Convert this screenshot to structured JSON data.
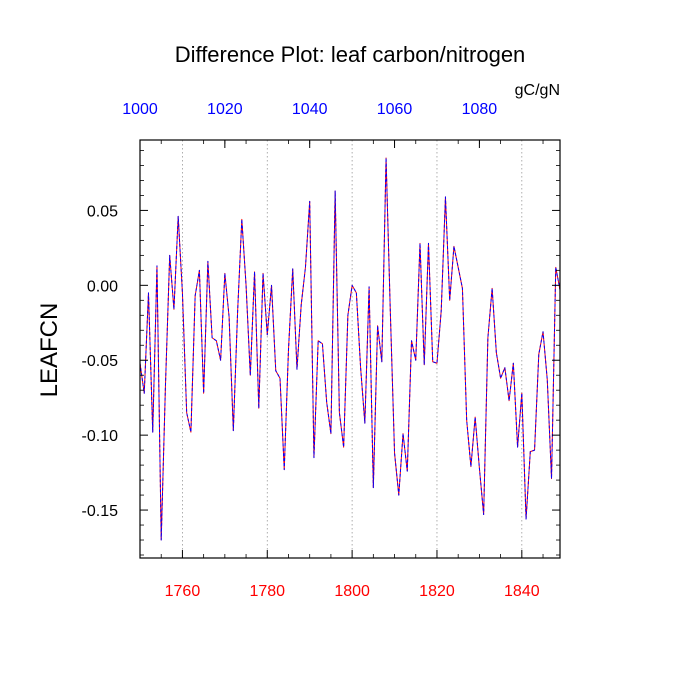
{
  "chart_data": {
    "type": "line",
    "title": "Difference Plot: leaf carbon/nitrogen",
    "units": "gC/gN",
    "ylabel": "LEAFCN",
    "xlabel": "",
    "bottom_axis": {
      "xlim": [
        1750,
        1849
      ],
      "ticks": [
        1760,
        1780,
        1800,
        1820,
        1840
      ],
      "tick_labels": [
        "1760",
        "1780",
        "1800",
        "1820",
        "1840"
      ],
      "color": "#ff0000"
    },
    "top_axis": {
      "xlim": [
        1000,
        1099
      ],
      "ticks": [
        1000,
        1020,
        1040,
        1060,
        1080
      ],
      "tick_labels": [
        "1000",
        "1020",
        "1040",
        "1060",
        "1080"
      ],
      "color": "#0000ff"
    },
    "ylim": [
      -0.182,
      0.097
    ],
    "yticks": [
      0.05,
      0.0,
      -0.05,
      -0.1,
      -0.15
    ],
    "ytick_labels": [
      "0.05",
      "0.00",
      "-0.05",
      "-0.10",
      "-0.15"
    ],
    "grid": "vertical dotted",
    "series": [
      {
        "name": "series-bottom-axis",
        "color": "#ff0000",
        "x": [
          1750,
          1751,
          1752,
          1753,
          1754,
          1755,
          1756,
          1757,
          1758,
          1759,
          1760,
          1761,
          1762,
          1763,
          1764,
          1765,
          1766,
          1767,
          1768,
          1769,
          1770,
          1771,
          1772,
          1773,
          1774,
          1775,
          1776,
          1777,
          1778,
          1779,
          1780,
          1781,
          1782,
          1783,
          1784,
          1785,
          1786,
          1787,
          1788,
          1789,
          1790,
          1791,
          1792,
          1793,
          1794,
          1795,
          1796,
          1797,
          1798,
          1799,
          1800,
          1801,
          1802,
          1803,
          1804,
          1805,
          1806,
          1807,
          1808,
          1809,
          1810,
          1811,
          1812,
          1813,
          1814,
          1815,
          1816,
          1817,
          1818,
          1819,
          1820,
          1821,
          1822,
          1823,
          1824,
          1825,
          1826,
          1827,
          1828,
          1829,
          1830,
          1831,
          1832,
          1833,
          1834,
          1835,
          1836,
          1837,
          1838,
          1839,
          1840,
          1841,
          1842,
          1843,
          1844,
          1845,
          1846,
          1847,
          1848,
          1849
        ],
        "y": [
          -0.052,
          -0.072,
          -0.005,
          -0.098,
          0.013,
          -0.17,
          -0.067,
          0.02,
          -0.016,
          0.046,
          -0.005,
          -0.085,
          -0.098,
          -0.007,
          0.01,
          -0.072,
          0.016,
          -0.035,
          -0.037,
          -0.05,
          0.008,
          -0.021,
          -0.097,
          -0.018,
          0.044,
          0.0,
          -0.06,
          0.009,
          -0.082,
          0.008,
          -0.033,
          0.0,
          -0.057,
          -0.062,
          -0.123,
          -0.043,
          0.011,
          -0.056,
          -0.013,
          0.012,
          0.056,
          -0.115,
          -0.037,
          -0.039,
          -0.078,
          -0.099,
          0.063,
          -0.085,
          -0.108,
          -0.02,
          0.0,
          -0.005,
          -0.055,
          -0.092,
          -0.001,
          -0.135,
          -0.027,
          -0.051,
          0.085,
          -0.017,
          -0.112,
          -0.14,
          -0.099,
          -0.124,
          -0.037,
          -0.05,
          0.028,
          -0.053,
          0.028,
          -0.051,
          -0.052,
          -0.017,
          0.059,
          -0.01,
          0.026,
          0.012,
          -0.002,
          -0.09,
          -0.121,
          -0.088,
          -0.122,
          -0.153,
          -0.035,
          -0.002,
          -0.045,
          -0.062,
          -0.055,
          -0.077,
          -0.052,
          -0.108,
          -0.072,
          -0.156,
          -0.111,
          -0.11,
          -0.046,
          -0.031,
          -0.063,
          -0.129,
          0.012,
          -0.003
        ]
      },
      {
        "name": "series-top-axis",
        "color": "#0000ff",
        "x": [
          1000,
          1001,
          1002,
          1003,
          1004,
          1005,
          1006,
          1007,
          1008,
          1009,
          1010,
          1011,
          1012,
          1013,
          1014,
          1015,
          1016,
          1017,
          1018,
          1019,
          1020,
          1021,
          1022,
          1023,
          1024,
          1025,
          1026,
          1027,
          1028,
          1029,
          1030,
          1031,
          1032,
          1033,
          1034,
          1035,
          1036,
          1037,
          1038,
          1039,
          1040,
          1041,
          1042,
          1043,
          1044,
          1045,
          1046,
          1047,
          1048,
          1049,
          1050,
          1051,
          1052,
          1053,
          1054,
          1055,
          1056,
          1057,
          1058,
          1059,
          1060,
          1061,
          1062,
          1063,
          1064,
          1065,
          1066,
          1067,
          1068,
          1069,
          1070,
          1071,
          1072,
          1073,
          1074,
          1075,
          1076,
          1077,
          1078,
          1079,
          1080,
          1081,
          1082,
          1083,
          1084,
          1085,
          1086,
          1087,
          1088,
          1089,
          1090,
          1091,
          1092,
          1093,
          1094,
          1095,
          1096,
          1097,
          1098,
          1099
        ],
        "y": [
          -0.052,
          -0.072,
          -0.005,
          -0.098,
          0.013,
          -0.17,
          -0.067,
          0.02,
          -0.016,
          0.046,
          -0.005,
          -0.085,
          -0.098,
          -0.007,
          0.01,
          -0.072,
          0.016,
          -0.035,
          -0.037,
          -0.05,
          0.008,
          -0.021,
          -0.097,
          -0.018,
          0.044,
          0.0,
          -0.06,
          0.009,
          -0.082,
          0.008,
          -0.033,
          0.0,
          -0.057,
          -0.062,
          -0.123,
          -0.043,
          0.011,
          -0.056,
          -0.013,
          0.012,
          0.056,
          -0.115,
          -0.037,
          -0.039,
          -0.078,
          -0.099,
          0.063,
          -0.085,
          -0.108,
          -0.02,
          0.0,
          -0.005,
          -0.055,
          -0.092,
          -0.001,
          -0.135,
          -0.027,
          -0.051,
          0.085,
          -0.017,
          -0.112,
          -0.14,
          -0.099,
          -0.124,
          -0.037,
          -0.05,
          0.028,
          -0.053,
          0.028,
          -0.051,
          -0.052,
          -0.017,
          0.059,
          -0.01,
          0.026,
          0.012,
          -0.002,
          -0.09,
          -0.121,
          -0.088,
          -0.122,
          -0.153,
          -0.035,
          -0.002,
          -0.045,
          -0.062,
          -0.055,
          -0.077,
          -0.052,
          -0.108,
          -0.072,
          -0.156,
          -0.111,
          -0.11,
          -0.046,
          -0.031,
          -0.063,
          -0.129,
          0.012,
          -0.003
        ]
      }
    ]
  }
}
